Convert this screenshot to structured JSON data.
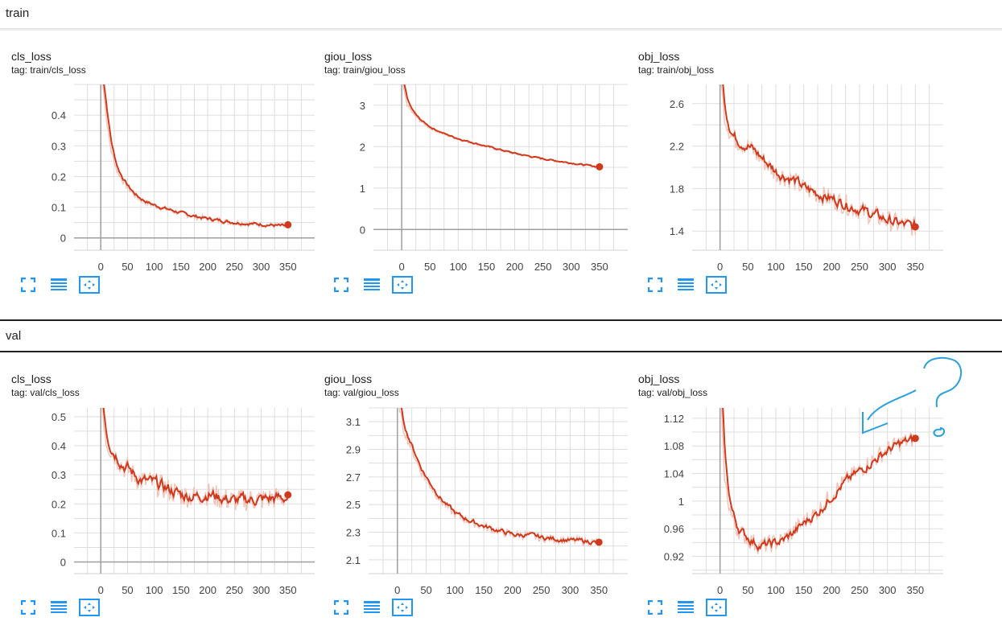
{
  "sections": [
    {
      "title": "train"
    },
    {
      "title": "val"
    }
  ],
  "colors": {
    "line": "#d0391c",
    "line_raw": "#f2c4b8",
    "grid": "#dddddd",
    "axis": "#9e9e9e",
    "icon": "#2196f3",
    "note": "#2aa1dc"
  },
  "icons": [
    "fullscreen-icon",
    "list-icon",
    "fit-domain-icon"
  ],
  "cards": [
    {
      "title": "cls_loss",
      "tag": "tag: train/cls_loss"
    },
    {
      "title": "giou_loss",
      "tag": "tag: train/giou_loss"
    },
    {
      "title": "obj_loss",
      "tag": "tag: train/obj_loss"
    },
    {
      "title": "cls_loss",
      "tag": "tag: val/cls_loss"
    },
    {
      "title": "giou_loss",
      "tag": "tag: val/giou_loss"
    },
    {
      "title": "obj_loss",
      "tag": "tag: val/obj_loss"
    }
  ],
  "chart_data": [
    {
      "type": "line",
      "title": "cls_loss",
      "xlim": [
        -50,
        400
      ],
      "ylim": [
        -0.04,
        0.5
      ],
      "xticks": [
        0,
        50,
        100,
        150,
        200,
        250,
        300,
        350
      ],
      "xtick_labels": [
        "0",
        "50",
        "100",
        "150",
        "200",
        "250",
        "300",
        "350"
      ],
      "yticks": [
        0,
        0.1,
        0.2,
        0.3,
        0.4
      ],
      "ytick_labels": [
        "0",
        "0.1",
        "0.2",
        "0.3",
        "0.4"
      ],
      "grid": true,
      "noise": 0.006,
      "series": [
        {
          "x": [
            0,
            5,
            10,
            15,
            20,
            25,
            30,
            40,
            50,
            60,
            70,
            80,
            100,
            120,
            150,
            175,
            200,
            250,
            300,
            350
          ],
          "y": [
            0.55,
            0.49,
            0.4,
            0.33,
            0.28,
            0.25,
            0.22,
            0.19,
            0.165,
            0.145,
            0.13,
            0.12,
            0.105,
            0.095,
            0.08,
            0.07,
            0.062,
            0.05,
            0.044,
            0.037
          ]
        }
      ]
    },
    {
      "type": "line",
      "title": "giou_loss",
      "xlim": [
        -50,
        400
      ],
      "ylim": [
        -0.5,
        3.5
      ],
      "xticks": [
        0,
        50,
        100,
        150,
        200,
        250,
        300,
        350
      ],
      "xtick_labels": [
        "0",
        "50",
        "100",
        "150",
        "200",
        "250",
        "300",
        "350"
      ],
      "yticks": [
        0,
        1,
        2,
        3
      ],
      "ytick_labels": [
        "0",
        "1",
        "2",
        "3"
      ],
      "grid": true,
      "noise": 0.02,
      "series": [
        {
          "x": [
            0,
            5,
            10,
            20,
            30,
            50,
            75,
            100,
            150,
            200,
            250,
            300,
            350
          ],
          "y": [
            3.7,
            3.3,
            3.0,
            2.8,
            2.65,
            2.45,
            2.3,
            2.18,
            2.0,
            1.83,
            1.7,
            1.6,
            1.5
          ]
        }
      ]
    },
    {
      "type": "line",
      "title": "obj_loss",
      "xlim": [
        -50,
        400
      ],
      "ylim": [
        1.22,
        2.78
      ],
      "xticks": [
        0,
        50,
        100,
        150,
        200,
        250,
        300,
        350
      ],
      "xtick_labels": [
        "0",
        "50",
        "100",
        "150",
        "200",
        "250",
        "300",
        "350"
      ],
      "yticks": [
        1.4,
        1.8,
        2.2,
        2.6
      ],
      "ytick_labels": [
        "1.4",
        "1.8",
        "2.2",
        "2.6"
      ],
      "grid": true,
      "noise": 0.06,
      "series": [
        {
          "x": [
            0,
            5,
            10,
            20,
            30,
            50,
            70,
            100,
            130,
            150,
            175,
            200,
            225,
            250,
            275,
            300,
            325,
            350
          ],
          "y": [
            3.0,
            2.6,
            2.45,
            2.3,
            2.25,
            2.2,
            2.1,
            1.95,
            1.88,
            1.8,
            1.75,
            1.7,
            1.65,
            1.6,
            1.55,
            1.5,
            1.46,
            1.44
          ]
        }
      ]
    },
    {
      "type": "line",
      "title": "cls_loss",
      "xlim": [
        -50,
        400
      ],
      "ylim": [
        -0.04,
        0.53
      ],
      "xticks": [
        0,
        50,
        100,
        150,
        200,
        250,
        300,
        350
      ],
      "xtick_labels": [
        "0",
        "50",
        "100",
        "150",
        "200",
        "250",
        "300",
        "350"
      ],
      "yticks": [
        0,
        0.1,
        0.2,
        0.3,
        0.4,
        0.5
      ],
      "ytick_labels": [
        "0",
        "0.1",
        "0.2",
        "0.3",
        "0.4",
        "0.5"
      ],
      "grid": true,
      "noise": 0.025,
      "series": [
        {
          "x": [
            0,
            5,
            10,
            20,
            30,
            40,
            50,
            60,
            75,
            100,
            125,
            150,
            175,
            200,
            225,
            250,
            275,
            300,
            325,
            350
          ],
          "y": [
            0.6,
            0.5,
            0.42,
            0.38,
            0.36,
            0.33,
            0.32,
            0.3,
            0.28,
            0.27,
            0.25,
            0.23,
            0.225,
            0.235,
            0.22,
            0.21,
            0.215,
            0.215,
            0.22,
            0.22
          ]
        }
      ]
    },
    {
      "type": "line",
      "title": "giou_loss",
      "xlim": [
        -50,
        400
      ],
      "ylim": [
        2.0,
        3.2
      ],
      "xticks": [
        0,
        50,
        100,
        150,
        200,
        250,
        300,
        350
      ],
      "xtick_labels": [
        "0",
        "50",
        "100",
        "150",
        "200",
        "250",
        "300",
        "350"
      ],
      "yticks": [
        2.1,
        2.3,
        2.5,
        2.7,
        2.9,
        3.1
      ],
      "ytick_labels": [
        "2.1",
        "2.3",
        "2.5",
        "2.7",
        "2.9",
        "3.1"
      ],
      "grid": true,
      "noise": 0.02,
      "series": [
        {
          "x": [
            0,
            10,
            20,
            30,
            40,
            50,
            75,
            100,
            125,
            150,
            175,
            200,
            225,
            250,
            275,
            300,
            325,
            350
          ],
          "y": [
            3.3,
            3.05,
            2.95,
            2.85,
            2.75,
            2.68,
            2.53,
            2.43,
            2.38,
            2.34,
            2.31,
            2.28,
            2.28,
            2.26,
            2.25,
            2.24,
            2.235,
            2.225
          ]
        }
      ]
    },
    {
      "type": "line",
      "title": "obj_loss",
      "xlim": [
        -50,
        400
      ],
      "ylim": [
        0.895,
        1.135
      ],
      "xticks": [
        0,
        50,
        100,
        150,
        200,
        250,
        300,
        350
      ],
      "xtick_labels": [
        "0",
        "50",
        "100",
        "150",
        "200",
        "250",
        "300",
        "350"
      ],
      "yticks": [
        0.92,
        0.96,
        1,
        1.04,
        1.08,
        1.12
      ],
      "ytick_labels": [
        "0.92",
        "0.96",
        "1",
        "1.04",
        "1.08",
        "1.12"
      ],
      "grid": true,
      "noise": 0.008,
      "series": [
        {
          "x": [
            0,
            5,
            10,
            20,
            30,
            50,
            70,
            90,
            110,
            130,
            150,
            175,
            200,
            225,
            250,
            275,
            300,
            325,
            350
          ],
          "y": [
            1.2,
            1.07,
            1.02,
            0.98,
            0.96,
            0.945,
            0.935,
            0.938,
            0.943,
            0.955,
            0.97,
            0.985,
            1.01,
            1.03,
            1.045,
            1.06,
            1.075,
            1.085,
            1.09
          ]
        }
      ]
    }
  ]
}
